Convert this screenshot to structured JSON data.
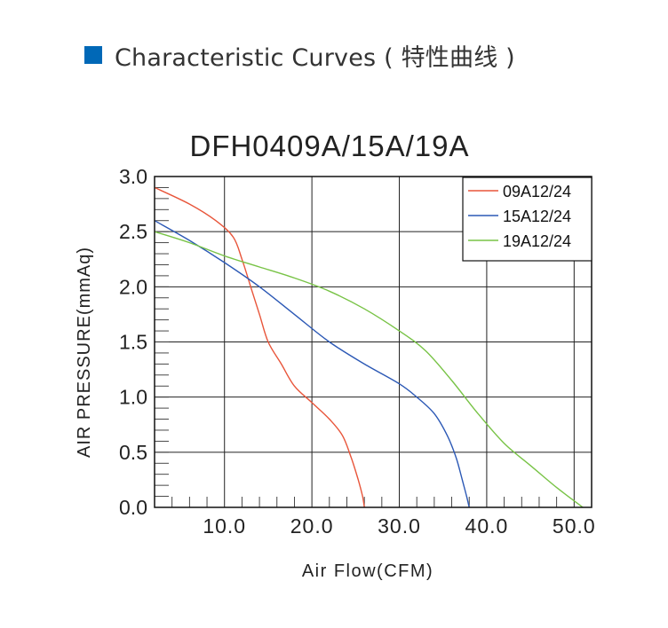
{
  "header": {
    "title": "Characteristic Curves ( 特性曲线 )",
    "square_color": "#0068b7"
  },
  "chart_data": {
    "type": "line",
    "title": "DFH0409A/15A/19A",
    "xlabel": "Air Flow(CFM)",
    "ylabel": "AIR PRESSURE(mmAq)",
    "xlim": [
      2.0,
      52.0
    ],
    "ylim": [
      0.0,
      3.0
    ],
    "x_ticks": [
      10.0,
      20.0,
      30.0,
      40.0,
      50.0
    ],
    "x_tick_labels": [
      "10.0",
      "20.0",
      "30.0",
      "40.0",
      "50.0"
    ],
    "y_ticks": [
      0.0,
      0.5,
      1.0,
      1.5,
      2.0,
      2.5,
      3.0
    ],
    "y_tick_labels": [
      "0.0",
      "0.5",
      "1.0",
      "1.5",
      "2.0",
      "2.5",
      "3.0"
    ],
    "grid": true,
    "legend_position": "top-right",
    "series": [
      {
        "name": "09A12/24",
        "color": "#e8553a",
        "x": [
          2.0,
          6.0,
          9.0,
          11.0,
          12.0,
          13.0,
          14.0,
          15.0,
          16.5,
          18.0,
          20.0,
          22.0,
          23.5,
          24.5,
          25.3,
          25.8,
          26.0
        ],
        "y": [
          2.9,
          2.75,
          2.6,
          2.45,
          2.25,
          2.0,
          1.75,
          1.5,
          1.3,
          1.1,
          0.95,
          0.8,
          0.65,
          0.45,
          0.25,
          0.1,
          0.0
        ]
      },
      {
        "name": "15A12/24",
        "color": "#2b58b5",
        "x": [
          2.0,
          6.0,
          10.0,
          14.0,
          18.0,
          22.0,
          26.0,
          30.0,
          32.0,
          34.0,
          35.5,
          36.5,
          37.2,
          37.7,
          38.0
        ],
        "y": [
          2.6,
          2.42,
          2.22,
          2.0,
          1.75,
          1.5,
          1.3,
          1.12,
          1.0,
          0.85,
          0.65,
          0.45,
          0.25,
          0.1,
          0.0
        ]
      },
      {
        "name": "19A12/24",
        "color": "#78c346",
        "x": [
          2.0,
          6.0,
          10.0,
          14.0,
          18.0,
          22.0,
          26.0,
          30.0,
          33.0,
          36.0,
          39.0,
          42.0,
          45.0,
          48.0,
          51.0
        ],
        "y": [
          2.5,
          2.4,
          2.28,
          2.18,
          2.08,
          1.96,
          1.8,
          1.6,
          1.42,
          1.15,
          0.85,
          0.58,
          0.38,
          0.18,
          0.0
        ]
      }
    ]
  }
}
